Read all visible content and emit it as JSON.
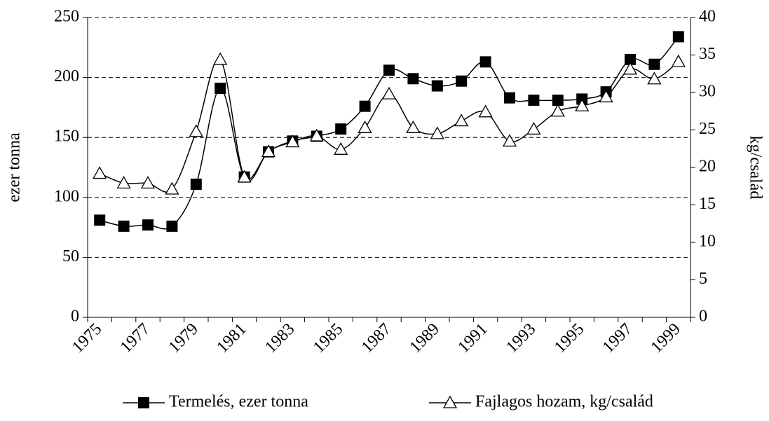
{
  "chart_data": {
    "type": "line",
    "categories": [
      "1975",
      null,
      "1977",
      null,
      "1979",
      null,
      "1981",
      null,
      "1983",
      null,
      "1985",
      null,
      "1987",
      null,
      "1989",
      null,
      "1991",
      null,
      "1993",
      null,
      "1995",
      null,
      "1997",
      null,
      "1999"
    ],
    "series": [
      {
        "name": "Termelés, ezer tonna",
        "color": "#000000",
        "marker": "square",
        "values": [
          81,
          76,
          77,
          76,
          111,
          191,
          117,
          138,
          147,
          151,
          157,
          176,
          206,
          199,
          193,
          197,
          213,
          183,
          181,
          181,
          182,
          188,
          215,
          211,
          234
        ]
      },
      {
        "name": "Fajlagos hozam, kg/család",
        "color": "#000000",
        "marker": "triangle",
        "axis": "y2",
        "values": [
          19.2,
          17.9,
          17.9,
          17.1,
          24.8,
          34.4,
          18.7,
          22.1,
          23.4,
          24.2,
          22.4,
          25.3,
          29.8,
          25.3,
          24.5,
          26.2,
          27.4,
          23.5,
          25.1,
          27.5,
          28.2,
          29.4,
          33.1,
          31.8,
          34.1
        ]
      }
    ],
    "ylabel": "ezer tonna",
    "y2label": "kg/család",
    "ylim": [
      0,
      250
    ],
    "yticks": [
      0,
      50,
      100,
      150,
      200,
      250
    ],
    "y2lim": [
      0,
      40
    ],
    "y2ticks": [
      0,
      5,
      10,
      15,
      20,
      25,
      30,
      35,
      40
    ],
    "grid": true,
    "legend": "bottom"
  }
}
